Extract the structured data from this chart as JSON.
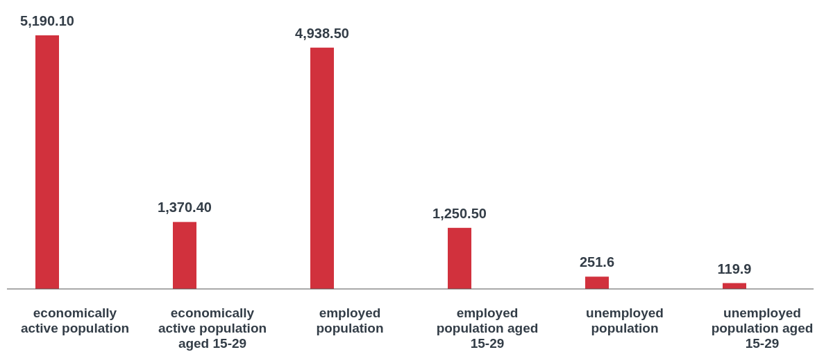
{
  "chart_data": {
    "type": "bar",
    "categories": [
      "economically active population",
      "economically active population aged 15-29",
      "employed population",
      "employed population aged 15-29",
      "unemployed population",
      "unemployed population aged 15-29"
    ],
    "values": [
      5190.1,
      1370.4,
      4938.5,
      1250.5,
      251.6,
      119.9
    ],
    "value_labels": [
      "5,190.10",
      "1,370.40",
      "4,938.50",
      "1,250.50",
      "251.6",
      "119.9"
    ],
    "color": "#d1313d"
  }
}
